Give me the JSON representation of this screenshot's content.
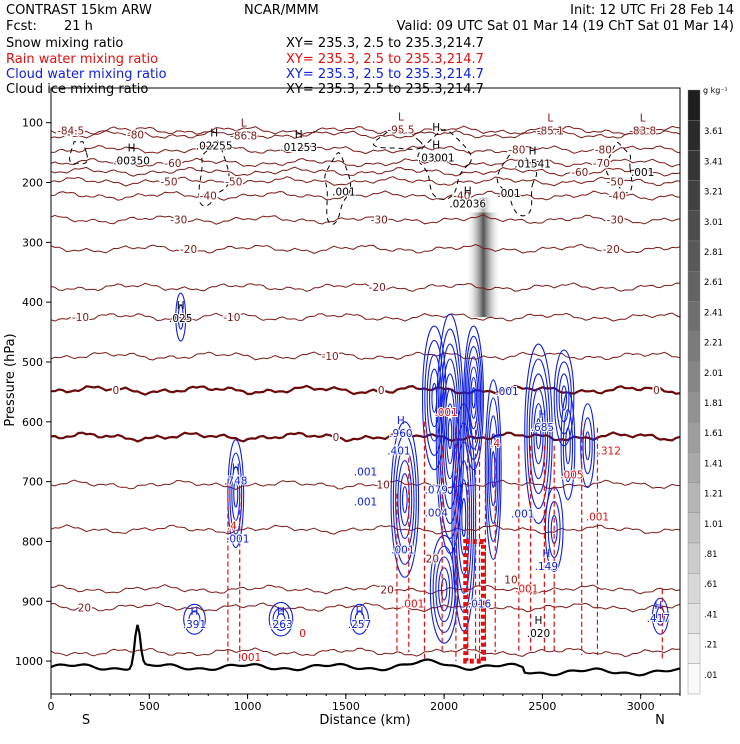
{
  "header": {
    "title_left": "CONTRAST 15km ARW",
    "title_center": "NCAR/MMM",
    "init": "Init: 12 UTC Fri 28 Feb 14",
    "fcst_label": "Fcst:",
    "fcst_value": "21 h",
    "valid": "Valid: 09 UTC Sat 01 Mar 14 (19 ChT Sat 01 Mar 14)"
  },
  "fields": [
    {
      "name": "Snow mixing ratio",
      "xy": "XY= 235.3,  2.5 to 235.3,214.7",
      "color": "#000000"
    },
    {
      "name": "Rain water mixing ratio",
      "xy": "XY= 235.3,  2.5 to 235.3,214.7",
      "color": "#e01010"
    },
    {
      "name": "Cloud water mixing ratio",
      "xy": "XY= 235.3,  2.5 to 235.3,214.7",
      "color": "#1020e0"
    },
    {
      "name": "Cloud ice mixing ratio",
      "xy": "XY= 235.3,  2.5 to 235.3,214.7",
      "color": "#000000"
    }
  ],
  "colors": {
    "temperature": "#7a1a1a",
    "freezing_level": "#6a0a0a",
    "rain": "#e01010",
    "cloud_water": "#1020e0",
    "snow": "#000000",
    "terrain": "#000000"
  },
  "chart_data": {
    "type": "cross-section",
    "xlabel": "Distance (km)",
    "ylabel": "Pressure (hPa)",
    "x_ticks": [
      0,
      500,
      1000,
      1500,
      2000,
      2500,
      3000
    ],
    "y_ticks": [
      100,
      200,
      300,
      400,
      500,
      600,
      700,
      800,
      900,
      1000
    ],
    "xlim": [
      0,
      3200
    ],
    "ylim": [
      1055,
      42
    ],
    "end_labels": {
      "left": "S",
      "right": "N"
    },
    "colorbar": {
      "unit": "g kg⁻¹",
      "labels": [
        "3.61",
        "3.41",
        "3.21",
        "3.01",
        "2.81",
        "2.61",
        "2.41",
        "2.21",
        "2.01",
        "1.81",
        "1.61",
        "1.41",
        "1.21",
        "1.01",
        ".81",
        ".61",
        ".41",
        ".21",
        ".01"
      ]
    },
    "temperature_contours": [
      {
        "p": 113,
        "labels": [
          {
            "x": 100,
            "text": "-84.5"
          }
        ]
      },
      {
        "p": 120,
        "labels": [
          {
            "x": 430,
            "text": "-80"
          }
        ]
      },
      {
        "p": 145,
        "labels": [
          {
            "x": 2370,
            "text": "-80"
          },
          {
            "x": 2810,
            "text": "-80"
          }
        ]
      },
      {
        "p": 167,
        "labels": [
          {
            "x": 620,
            "text": "-60"
          },
          {
            "x": 2800,
            "text": "-70"
          }
        ]
      },
      {
        "p": 182,
        "labels": [
          {
            "x": 2690,
            "text": "-60"
          }
        ]
      },
      {
        "p": 198,
        "labels": [
          {
            "x": 600,
            "text": "-50"
          },
          {
            "x": 2870,
            "text": "-50"
          },
          {
            "x": 930,
            "text": "-50"
          }
        ]
      },
      {
        "p": 222,
        "labels": [
          {
            "x": 800,
            "text": "-40"
          },
          {
            "x": 2090,
            "text": "-40"
          },
          {
            "x": 2880,
            "text": "-40"
          }
        ]
      },
      {
        "p": 262,
        "labels": [
          {
            "x": 650,
            "text": "-30"
          },
          {
            "x": 1670,
            "text": "-30"
          },
          {
            "x": 2870,
            "text": "-30"
          }
        ]
      },
      {
        "p": 311,
        "labels": [
          {
            "x": 700,
            "text": "-20"
          },
          {
            "x": 2850,
            "text": "-20"
          }
        ]
      },
      {
        "p": 375,
        "labels": [
          {
            "x": 1660,
            "text": "-20"
          }
        ]
      },
      {
        "p": 425,
        "labels": [
          {
            "x": 150,
            "text": "-10"
          },
          {
            "x": 920,
            "text": "-10"
          }
        ]
      },
      {
        "p": 490,
        "labels": [
          {
            "x": 1420,
            "text": "-10"
          }
        ]
      },
      {
        "p": 547,
        "labels": [
          {
            "x": 330,
            "text": "0"
          },
          {
            "x": 1680,
            "text": "0"
          },
          {
            "x": 3080,
            "text": "0"
          }
        ]
      },
      {
        "p": 625,
        "labels": [
          {
            "x": 1450,
            "text": "0"
          }
        ]
      },
      {
        "p": 705,
        "labels": [
          {
            "x": 1690,
            "text": "10"
          }
        ]
      },
      {
        "p": 780,
        "labels": []
      },
      {
        "p": 880,
        "labels": [
          {
            "x": 1710,
            "text": "20"
          }
        ]
      },
      {
        "p": 910,
        "labels": [
          {
            "x": 170,
            "text": "20"
          }
        ]
      },
      {
        "p": 985,
        "labels": []
      }
    ],
    "extrema": [
      {
        "type": "L",
        "x": 980,
        "p": 118,
        "value": "-86.8"
      },
      {
        "type": "L",
        "x": 1780,
        "p": 108,
        "value": "-95.5"
      },
      {
        "type": "L",
        "x": 2540,
        "p": 110,
        "value": "-85.1"
      },
      {
        "type": "L",
        "x": 3010,
        "p": 110,
        "value": "-83.8"
      },
      {
        "type": "H",
        "x": 410,
        "p": 160,
        "value": ".00350"
      },
      {
        "type": "H",
        "x": 830,
        "p": 135,
        "value": ".02255"
      },
      {
        "type": "H",
        "x": 1260,
        "p": 137,
        "value": ".01253"
      },
      {
        "type": "H",
        "x": 1960,
        "p": 155,
        "value": ".03001"
      },
      {
        "type": "H",
        "x": 2450,
        "p": 165,
        "value": ".01541"
      },
      {
        "type": "H",
        "x": 2120,
        "p": 232,
        "value": ".02036"
      },
      {
        "type": "H",
        "x": 660,
        "p": 423,
        "value": ".025"
      },
      {
        "type": "H",
        "x": 940,
        "p": 695,
        "value": ".748"
      },
      {
        "type": "H",
        "x": 1780,
        "p": 615,
        "value": ".960"
      },
      {
        "type": "H",
        "x": 2500,
        "p": 605,
        "value": ".685"
      },
      {
        "type": "H",
        "x": 730,
        "p": 935,
        "value": ".391"
      },
      {
        "type": "H",
        "x": 1170,
        "p": 935,
        "value": ".263"
      },
      {
        "type": "H",
        "x": 1570,
        "p": 935,
        "value": ".257"
      },
      {
        "type": "H",
        "x": 3090,
        "p": 925,
        "value": ".417"
      },
      {
        "type": "H",
        "x": 2480,
        "p": 950,
        "value": ".020"
      },
      {
        "type": "H",
        "x": 2520,
        "p": 838,
        "value": ".149"
      }
    ],
    "value_labels": [
      {
        "x": 3010,
        "p": 189,
        "text": ".001",
        "color": "black"
      },
      {
        "x": 2330,
        "p": 224,
        "text": ".001",
        "color": "black"
      },
      {
        "x": 1490,
        "p": 222,
        "text": ".001",
        "color": "black"
      },
      {
        "x": 1960,
        "p": 114,
        "text": "H",
        "color": "black"
      },
      {
        "x": 1600,
        "p": 740,
        "text": ".001",
        "color": "blue"
      },
      {
        "x": 1600,
        "p": 690,
        "text": ".001",
        "color": "blue"
      },
      {
        "x": 950,
        "p": 802,
        "text": ".001",
        "color": "blue"
      },
      {
        "x": 2400,
        "p": 760,
        "text": ".001",
        "color": "blue"
      },
      {
        "x": 2780,
        "p": 765,
        "text": ".001",
        "color": "red"
      },
      {
        "x": 2650,
        "p": 695,
        "text": ".005",
        "color": "red"
      },
      {
        "x": 1840,
        "p": 910,
        "text": ".001",
        "color": "red"
      },
      {
        "x": 1010,
        "p": 1000,
        "text": ".001",
        "color": "red"
      },
      {
        "x": 2320,
        "p": 555,
        "text": ".001",
        "color": "blue"
      },
      {
        "x": 1960,
        "p": 758,
        "text": ".004",
        "color": "blue"
      },
      {
        "x": 1960,
        "p": 720,
        "text": ".079",
        "color": "blue"
      },
      {
        "x": 1790,
        "p": 820,
        "text": ".001",
        "color": "blue"
      },
      {
        "x": 2010,
        "p": 590,
        "text": ".001",
        "color": "red"
      },
      {
        "x": 1940,
        "p": 835,
        "text": "20",
        "color": "brown"
      },
      {
        "x": 2180,
        "p": 910,
        "text": ".016",
        "color": "blue"
      },
      {
        "x": 2340,
        "p": 870,
        "text": "10",
        "color": "brown"
      },
      {
        "x": 2420,
        "p": 885,
        "text": ".001",
        "color": "red"
      },
      {
        "x": 1280,
        "p": 960,
        "text": "0",
        "color": "red"
      },
      {
        "x": 2840,
        "p": 655,
        "text": ".312",
        "color": "red"
      },
      {
        "x": 1770,
        "p": 655,
        "text": ".401",
        "color": "blue"
      },
      {
        "x": 920,
        "p": 780,
        "text": ".4",
        "color": "red"
      },
      {
        "x": 2260,
        "p": 642,
        "text": ".4",
        "color": "red"
      }
    ]
  }
}
